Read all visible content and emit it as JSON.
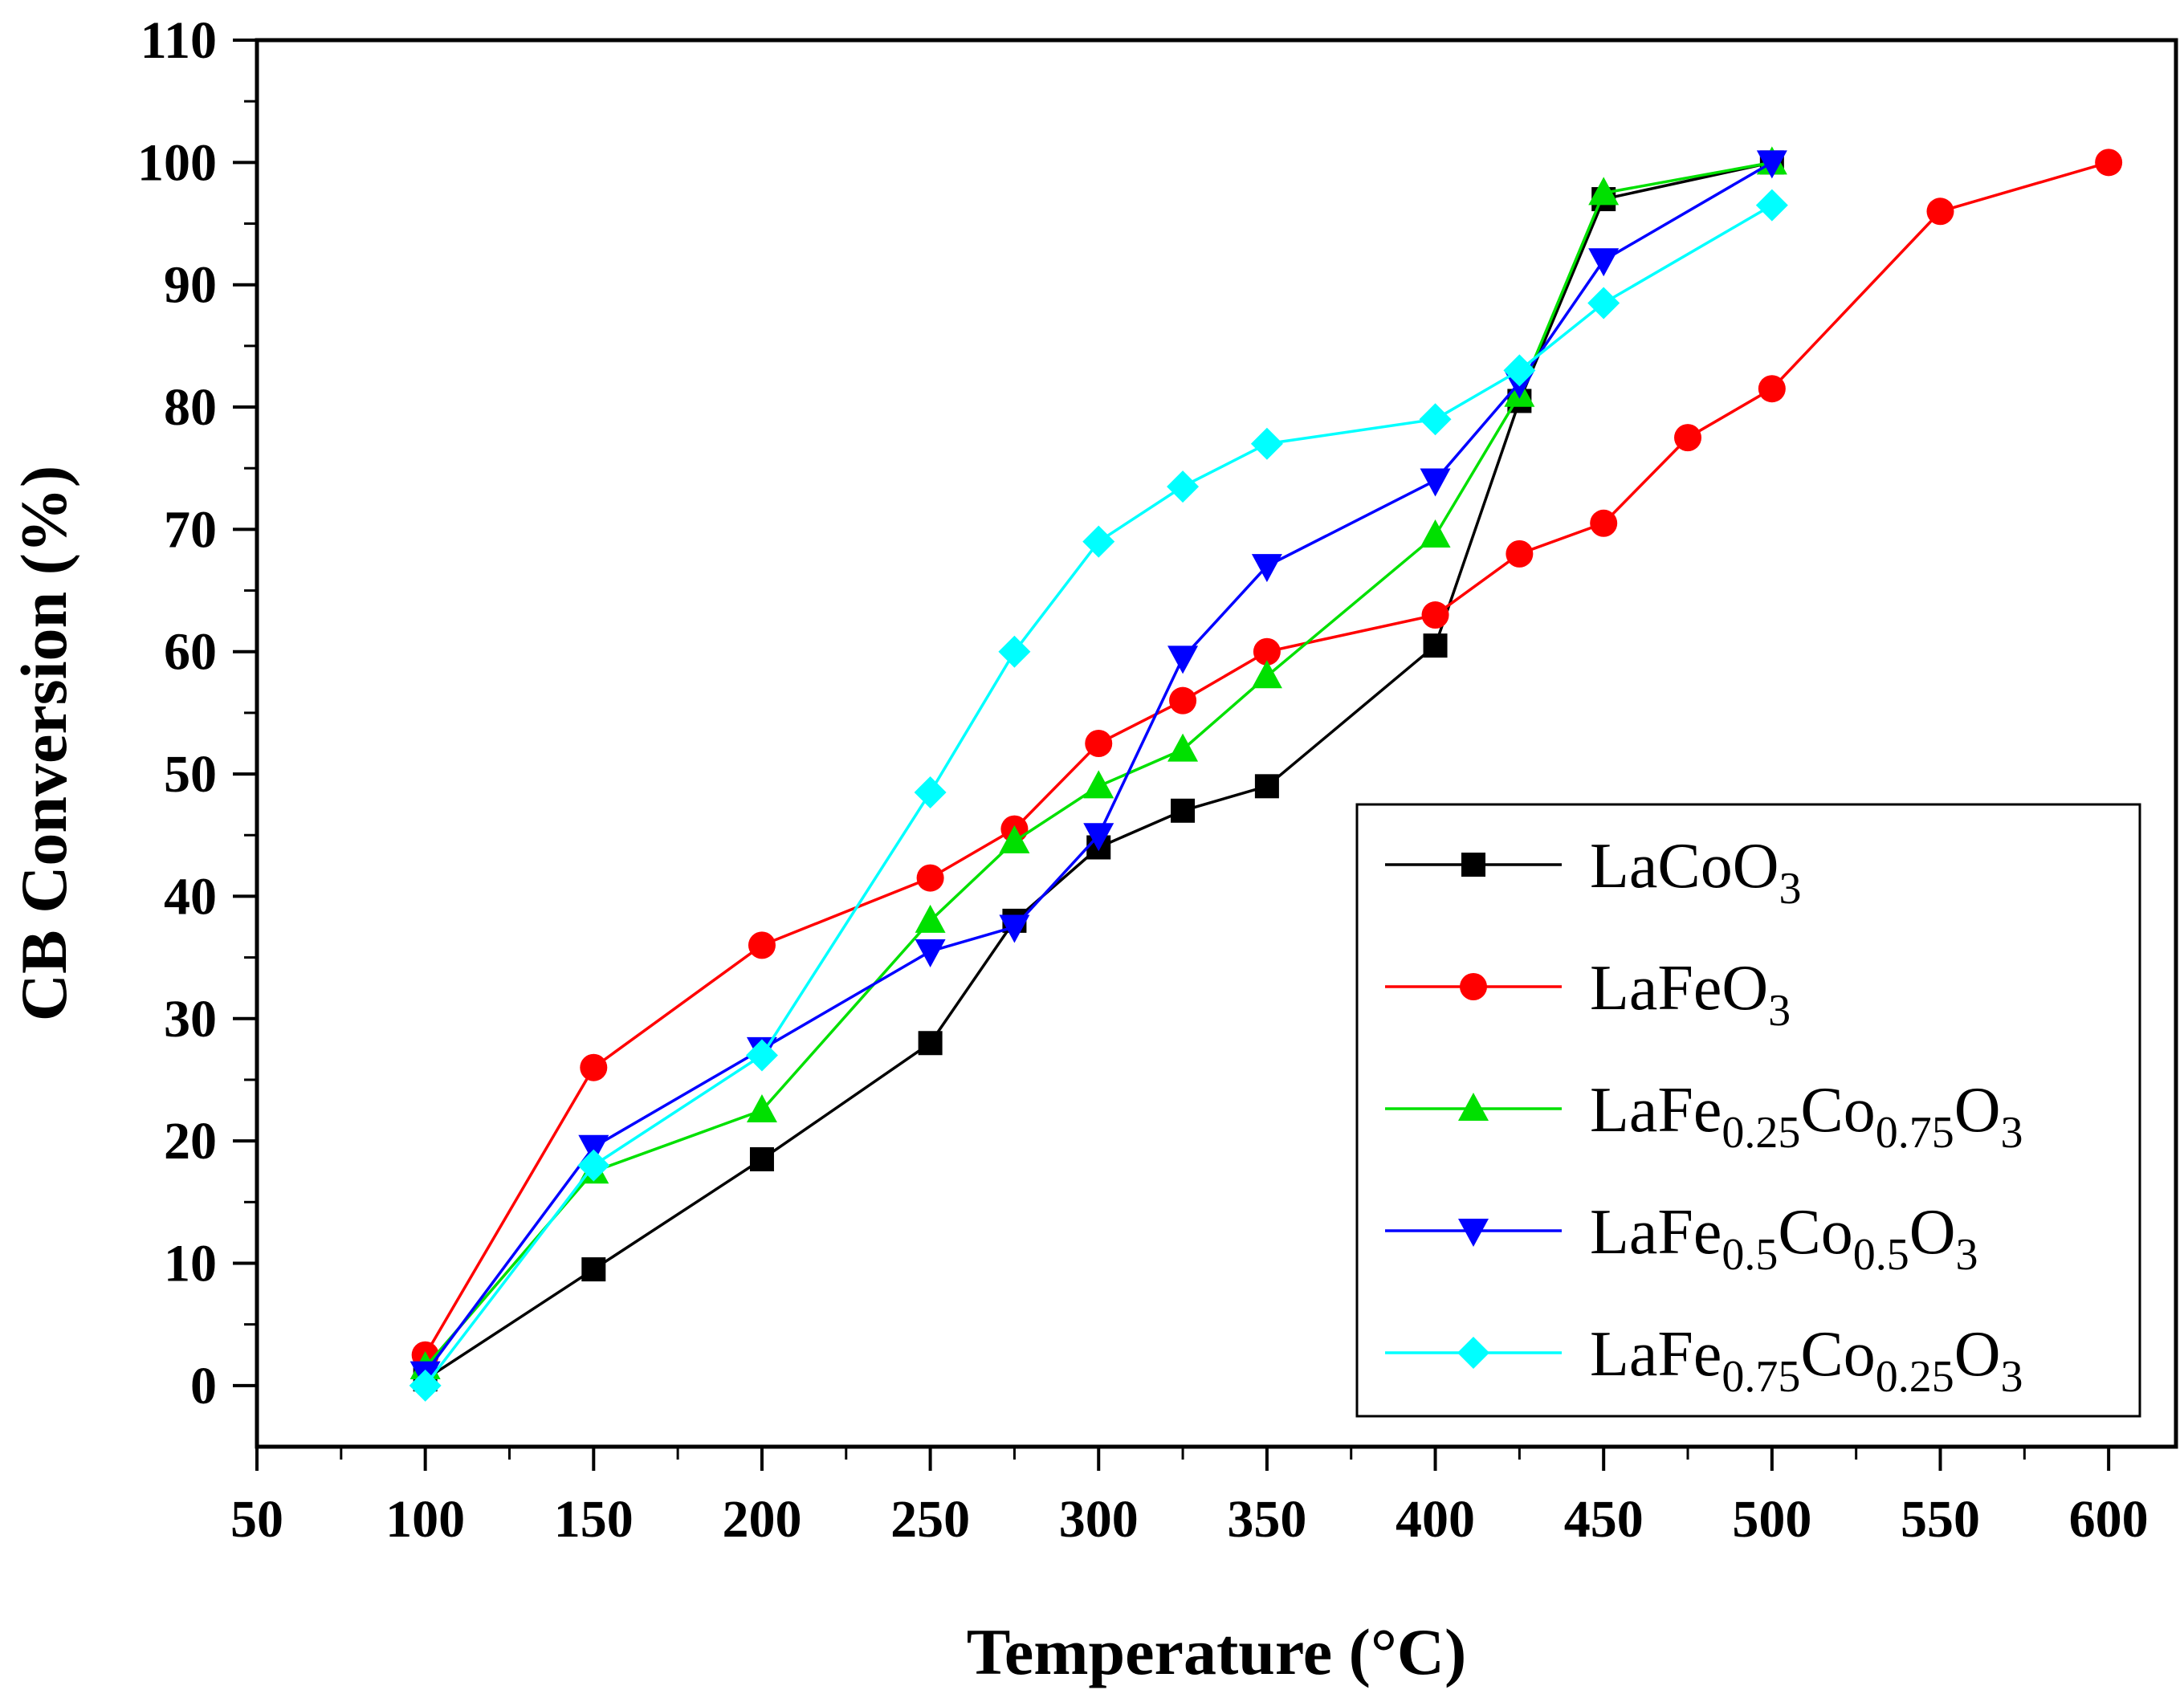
{
  "chart_data": {
    "type": "line",
    "title": "",
    "xlabel": "Temperature (°C)",
    "ylabel": "CB Conversion (%)",
    "xlim": [
      50,
      620
    ],
    "ylim": [
      -5,
      110
    ],
    "x_major_ticks": [
      50,
      100,
      150,
      200,
      250,
      300,
      350,
      400,
      450,
      500,
      550,
      600
    ],
    "y_major_ticks": [
      0,
      10,
      20,
      30,
      40,
      50,
      60,
      70,
      80,
      90,
      100,
      110
    ],
    "grid": false,
    "legend_position": "bottom-right",
    "series": [
      {
        "name": "LaCoO3",
        "legend": {
          "base": "LaCoO",
          "parts": [
            {
              "sub": "3"
            }
          ]
        },
        "color": "#000000",
        "marker": "square",
        "x": [
          100,
          150,
          200,
          250,
          275,
          300,
          325,
          350,
          400,
          425,
          450,
          500
        ],
        "y": [
          0.5,
          9.5,
          18.5,
          28,
          38,
          44,
          47,
          49,
          60.5,
          80.5,
          97,
          100
        ]
      },
      {
        "name": "LaFeO3",
        "legend": {
          "base": "LaFeO",
          "parts": [
            {
              "sub": "3"
            }
          ]
        },
        "color": "#ff0000",
        "marker": "circle",
        "x": [
          100,
          150,
          200,
          250,
          275,
          300,
          325,
          350,
          400,
          425,
          450,
          475,
          500,
          550,
          600
        ],
        "y": [
          2.5,
          26,
          36,
          41.5,
          45.5,
          52.5,
          56,
          60,
          63,
          68,
          70.5,
          77.5,
          81.5,
          96,
          100
        ]
      },
      {
        "name": "LaFe0.25Co0.75O3",
        "legend": {
          "base": "LaFe",
          "parts": [
            {
              "sub": "0.25"
            },
            {
              "text": "Co"
            },
            {
              "sub": "0.75"
            },
            {
              "text": "O"
            },
            {
              "sub": "3"
            }
          ]
        },
        "color": "#00e000",
        "marker": "triangle-up",
        "x": [
          100,
          150,
          200,
          250,
          275,
          300,
          325,
          350,
          400,
          425,
          450,
          500
        ],
        "y": [
          1.5,
          17.5,
          22.5,
          38,
          44.5,
          49,
          52,
          58,
          69.5,
          81,
          97.5,
          100
        ]
      },
      {
        "name": "LaFe0.5Co0.5O3",
        "legend": {
          "base": "LaFe",
          "parts": [
            {
              "sub": "0.5"
            },
            {
              "text": "Co"
            },
            {
              "sub": "0.5"
            },
            {
              "text": "O"
            },
            {
              "sub": "3"
            }
          ]
        },
        "color": "#0000ff",
        "marker": "triangle-down",
        "x": [
          100,
          150,
          200,
          250,
          275,
          300,
          325,
          350,
          400,
          425,
          450,
          500
        ],
        "y": [
          1,
          19.5,
          27.5,
          35.5,
          37.5,
          45,
          59.5,
          67,
          74,
          82,
          92,
          100
        ]
      },
      {
        "name": "LaFe0.75Co0.25O3",
        "legend": {
          "base": "LaFe",
          "parts": [
            {
              "sub": "0.75"
            },
            {
              "text": "Co"
            },
            {
              "sub": "0.25"
            },
            {
              "text": "O"
            },
            {
              "sub": "3"
            }
          ]
        },
        "color": "#00ffff",
        "marker": "diamond",
        "x": [
          100,
          150,
          200,
          250,
          275,
          300,
          325,
          350,
          400,
          425,
          450,
          500
        ],
        "y": [
          0,
          18,
          27,
          48.5,
          60,
          69,
          73.5,
          77,
          79,
          83,
          88.5,
          96.5
        ]
      }
    ]
  }
}
